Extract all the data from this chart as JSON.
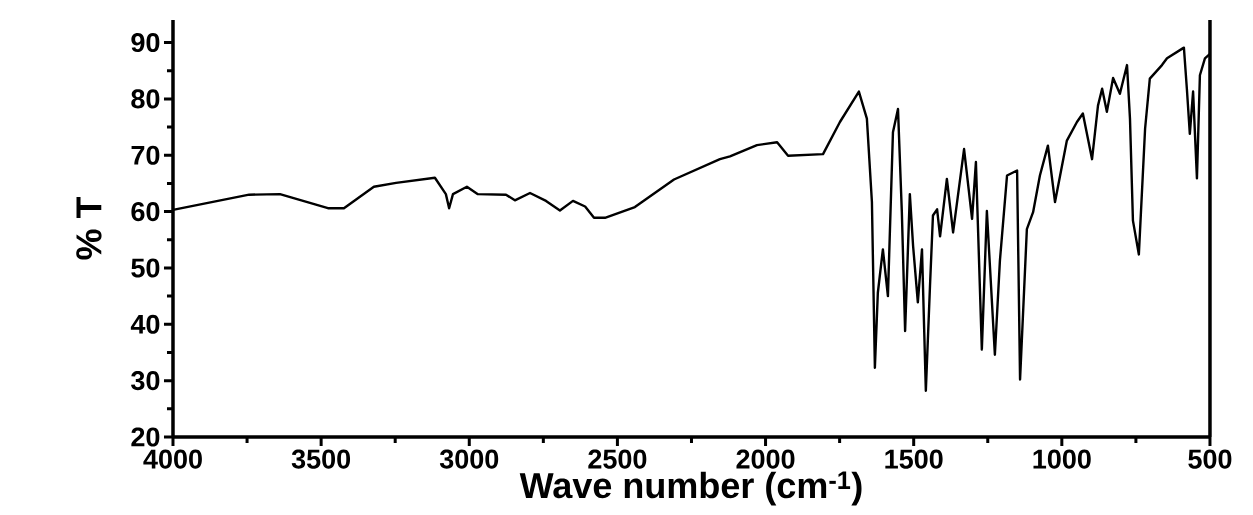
{
  "chart_data": {
    "type": "line",
    "xlabel": "Wave number (cm$^{-1}$)",
    "ylabel": "% T",
    "xlim": [
      4000,
      500
    ],
    "ylim": [
      20,
      94
    ],
    "xticks": [
      4000,
      3500,
      3000,
      2500,
      2000,
      1500,
      1000,
      500
    ],
    "yticks": [
      20,
      30,
      40,
      50,
      60,
      70,
      80,
      90
    ],
    "grid": false,
    "marker": "none",
    "line_style": "solid",
    "x": [
      4000,
      3743,
      3639,
      3477,
      3423,
      3322,
      3247,
      3116,
      3079,
      3068,
      3055,
      3008,
      2971,
      2876,
      2846,
      2795,
      2741,
      2694,
      2650,
      2609,
      2579,
      2542,
      2441,
      2309,
      2154,
      2120,
      2029,
      1961,
      1924,
      1806,
      1749,
      1685,
      1658,
      1641,
      1631,
      1621,
      1604,
      1587,
      1570,
      1553,
      1540,
      1529,
      1513,
      1502,
      1486,
      1472,
      1459,
      1445,
      1435,
      1421,
      1411,
      1388,
      1367,
      1330,
      1303,
      1290,
      1270,
      1253,
      1226,
      1209,
      1185,
      1151,
      1141,
      1118,
      1097,
      1074,
      1047,
      1023,
      983,
      949,
      929,
      898,
      878,
      864,
      848,
      827,
      804,
      780,
      770,
      760,
      740,
      719,
      703,
      662,
      645,
      588,
      578,
      568,
      557,
      544,
      534,
      517,
      500
    ],
    "series": [
      {
        "color": "#000000",
        "values": [
          60.3,
          63.0,
          63.1,
          60.6,
          60.6,
          64.4,
          65.1,
          66.0,
          63.1,
          60.6,
          63.1,
          64.4,
          63.1,
          63.0,
          62.0,
          63.3,
          61.9,
          60.2,
          61.9,
          60.9,
          58.9,
          58.9,
          60.8,
          65.7,
          69.3,
          69.8,
          71.8,
          72.3,
          69.9,
          70.2,
          75.9,
          81.3,
          76.5,
          61.7,
          32.3,
          45.6,
          53.3,
          45.0,
          74.1,
          78.2,
          59.9,
          38.8,
          63.1,
          53.9,
          43.9,
          53.3,
          28.2,
          46.8,
          59.3,
          60.4,
          55.6,
          65.8,
          56.3,
          71.1,
          58.7,
          68.8,
          35.5,
          60.1,
          34.6,
          51.3,
          66.4,
          67.3,
          30.2,
          56.9,
          59.9,
          66.4,
          71.7,
          61.7,
          72.6,
          75.9,
          77.4,
          69.3,
          78.8,
          81.8,
          77.7,
          83.7,
          80.9,
          86.0,
          76.5,
          58.4,
          52.4,
          74.7,
          83.6,
          86.0,
          87.2,
          89.1,
          81.8,
          73.8,
          81.3,
          65.9,
          84.2,
          87.2,
          88.0
        ]
      }
    ]
  }
}
